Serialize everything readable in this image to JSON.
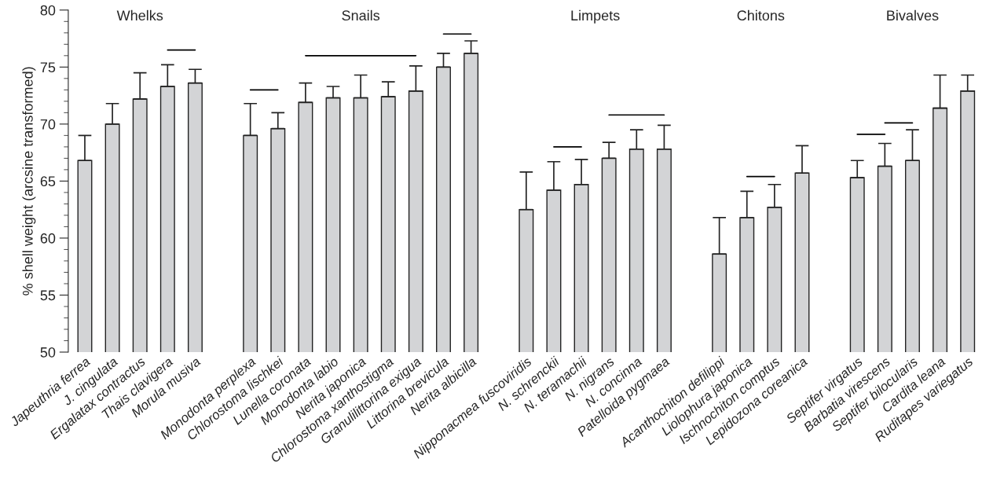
{
  "chart_data": {
    "type": "bar",
    "ylabel": "% shell weight (arcsine transformed)",
    "categories": [
      "Japeuthria ferrea",
      "J. cingulata",
      "Ergalatax contractus",
      "Thais clavigera",
      "Morula musiva",
      null,
      "Monodonta perplexa",
      "Chlorostoma lischkei",
      "Lunella coronata",
      "Monodonta labio",
      "Nerita japonica",
      "Chlorostoma xanthostigma",
      "Granulilittorina exigua",
      "Littorina brevicula",
      "Nerita albicilla",
      null,
      "Nipponacmea fuscoviridis",
      "N. schrenckii",
      "N. teramachii",
      "N. nigrans",
      "N. concinna",
      "Patelloida pygmaea",
      null,
      "Acanthochiton defilippi",
      "Liolophura japonica",
      "Ischnochiton comptus",
      "Lepidozona coreanica",
      null,
      "Septifer virgatus",
      "Barbatia virescens",
      "Septifer bilocularis",
      "Cardita leana",
      "Ruditapes variegatus"
    ],
    "series": [
      {
        "color": "#d3d4d6",
        "values": [
          66.8,
          70.0,
          72.2,
          73.3,
          73.6,
          null,
          69.0,
          69.6,
          71.9,
          72.3,
          72.3,
          72.4,
          72.9,
          75.0,
          76.2,
          null,
          62.5,
          64.2,
          64.7,
          67.0,
          67.8,
          67.8,
          null,
          58.6,
          61.8,
          62.7,
          65.7,
          null,
          65.3,
          66.3,
          66.8,
          71.4,
          72.9
        ],
        "errors": [
          [
            66.8,
            69.0
          ],
          [
            70.0,
            71.8
          ],
          [
            72.2,
            74.5
          ],
          [
            73.3,
            75.2
          ],
          [
            73.6,
            74.8
          ],
          null,
          [
            69.0,
            71.8
          ],
          [
            69.6,
            71.0
          ],
          [
            71.9,
            73.6
          ],
          [
            72.3,
            73.3
          ],
          [
            72.3,
            74.3
          ],
          [
            72.4,
            73.7
          ],
          [
            72.9,
            75.1
          ],
          [
            75.0,
            76.2
          ],
          [
            76.2,
            77.3
          ],
          null,
          [
            62.5,
            65.8
          ],
          [
            64.2,
            66.7
          ],
          [
            64.7,
            66.9
          ],
          [
            67.0,
            68.4
          ],
          [
            67.8,
            69.5
          ],
          [
            67.8,
            69.9
          ],
          null,
          [
            58.6,
            61.8
          ],
          [
            61.8,
            64.1
          ],
          [
            62.7,
            64.7
          ],
          [
            65.7,
            68.1
          ],
          null,
          [
            65.3,
            66.8
          ],
          [
            66.3,
            68.3
          ],
          [
            66.8,
            69.5
          ],
          [
            71.4,
            74.3
          ],
          [
            72.9,
            74.3
          ]
        ]
      },
      {
        "type": "line",
        "color": "#000000",
        "values": [
          null,
          null,
          null,
          76.5,
          76.5,
          null,
          null,
          null,
          null,
          null,
          null,
          null,
          null,
          null,
          null,
          null,
          null,
          null,
          null,
          null,
          null,
          null,
          null,
          null,
          null,
          null,
          null,
          null,
          null,
          null,
          null,
          null,
          null
        ]
      },
      {
        "type": "line",
        "color": "#000000",
        "values": [
          null,
          null,
          null,
          null,
          null,
          null,
          73.0,
          73.0,
          null,
          null,
          null,
          null,
          null,
          null,
          null,
          null,
          null,
          null,
          null,
          null,
          null,
          null,
          null,
          null,
          null,
          null,
          null,
          null,
          null,
          null,
          null,
          null,
          null
        ]
      },
      {
        "type": "line",
        "color": "#000000",
        "values": [
          null,
          null,
          null,
          null,
          null,
          null,
          null,
          null,
          76.0,
          76.0,
          76.0,
          76.0,
          76.0,
          null,
          null,
          null,
          null,
          null,
          null,
          null,
          null,
          null,
          null,
          null,
          null,
          null,
          null,
          null,
          null,
          null,
          null,
          null,
          null
        ]
      },
      {
        "type": "line",
        "color": "#000000",
        "values": [
          null,
          null,
          null,
          null,
          null,
          null,
          null,
          null,
          null,
          null,
          null,
          null,
          null,
          77.9,
          77.9,
          null,
          null,
          null,
          null,
          null,
          null,
          null,
          null,
          null,
          null,
          null,
          null,
          null,
          null,
          null,
          null,
          null,
          null
        ]
      },
      {
        "type": "line",
        "color": "#000000",
        "values": [
          null,
          null,
          null,
          null,
          null,
          null,
          null,
          null,
          null,
          null,
          null,
          null,
          null,
          null,
          null,
          null,
          null,
          68.0,
          68.0,
          null,
          null,
          null,
          null,
          null,
          null,
          null,
          null,
          null,
          null,
          null,
          null,
          null,
          null
        ]
      },
      {
        "type": "line",
        "color": "#000000",
        "values": [
          null,
          null,
          null,
          null,
          null,
          null,
          null,
          null,
          null,
          null,
          null,
          null,
          null,
          null,
          null,
          null,
          null,
          null,
          null,
          70.8,
          70.8,
          70.8,
          null,
          null,
          null,
          null,
          null,
          null,
          null,
          null,
          null,
          null,
          null
        ]
      },
      {
        "type": "line",
        "color": "#000000",
        "values": [
          null,
          null,
          null,
          null,
          null,
          null,
          null,
          null,
          null,
          null,
          null,
          null,
          null,
          null,
          null,
          null,
          null,
          null,
          null,
          null,
          null,
          null,
          null,
          null,
          65.4,
          65.4,
          null,
          null,
          null,
          null,
          null,
          null,
          null
        ]
      },
      {
        "type": "line",
        "color": "#000000",
        "values": [
          null,
          null,
          null,
          null,
          null,
          null,
          null,
          null,
          null,
          null,
          null,
          null,
          null,
          null,
          null,
          null,
          null,
          null,
          null,
          null,
          null,
          null,
          null,
          null,
          null,
          null,
          null,
          null,
          69.1,
          69.1,
          null,
          null,
          null
        ]
      },
      {
        "type": "line",
        "color": "#000000",
        "values": [
          null,
          null,
          null,
          null,
          null,
          null,
          null,
          null,
          null,
          null,
          null,
          null,
          null,
          null,
          null,
          null,
          null,
          null,
          null,
          null,
          null,
          null,
          null,
          null,
          null,
          null,
          null,
          null,
          null,
          70.1,
          70.1,
          null,
          null
        ]
      }
    ],
    "annotations": [
      "Whelks",
      "Snails",
      "Limpets",
      "Chitons",
      "Bivalves"
    ],
    "ylim": [
      50,
      80
    ],
    "yticks": [
      50,
      55,
      60,
      65,
      70,
      75,
      80
    ],
    "grid": false,
    "legend": false
  }
}
